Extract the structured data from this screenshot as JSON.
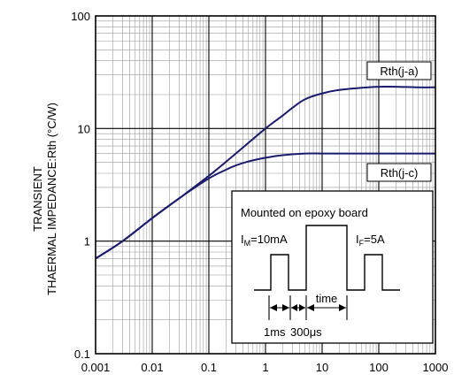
{
  "chart_data": {
    "type": "line",
    "title": "",
    "xlabel": "",
    "ylabel_lines": [
      "TRANSIENT",
      "THAERMAL IMPEDANCE:Rth (°C/W)"
    ],
    "xscale": "log",
    "yscale": "log",
    "xlim": [
      0.001,
      1000
    ],
    "ylim": [
      0.1,
      100
    ],
    "grid": true,
    "x_ticks": [
      "0.001",
      "0.01",
      "0.1",
      "1",
      "10",
      "100",
      "1000"
    ],
    "y_ticks": [
      "0.1",
      "1",
      "10",
      "100"
    ],
    "series_color": "#1a1a6e",
    "series": [
      {
        "name": "Rth(j-a)",
        "x": [
          0.001,
          0.003,
          0.01,
          0.03,
          0.1,
          0.3,
          1,
          2,
          3,
          5,
          10,
          20,
          50,
          100,
          200,
          500,
          1000
        ],
        "y": [
          0.7,
          1.0,
          1.6,
          2.4,
          3.8,
          6.0,
          10.0,
          13.0,
          15.3,
          18.2,
          20.5,
          22.0,
          23.0,
          23.5,
          23.5,
          23.2,
          23.2
        ]
      },
      {
        "name": "Rth(j-c)",
        "x": [
          0.001,
          0.003,
          0.01,
          0.03,
          0.1,
          0.2,
          0.3,
          0.5,
          1,
          2,
          5,
          10,
          20,
          100,
          1000
        ],
        "y": [
          0.7,
          1.0,
          1.6,
          2.4,
          3.6,
          4.3,
          4.7,
          5.1,
          5.5,
          5.8,
          6.0,
          6.0,
          6.0,
          6.0,
          6.0
        ]
      }
    ],
    "inset": {
      "title": "Mounted on epoxy board",
      "im_base": "I",
      "im_sub": "M",
      "im_value": "=10mA",
      "if_base": "I",
      "if_sub": "F",
      "if_value": "=5A",
      "time_label": "time",
      "ms_label": "1ms",
      "us_label": "300μs"
    }
  }
}
